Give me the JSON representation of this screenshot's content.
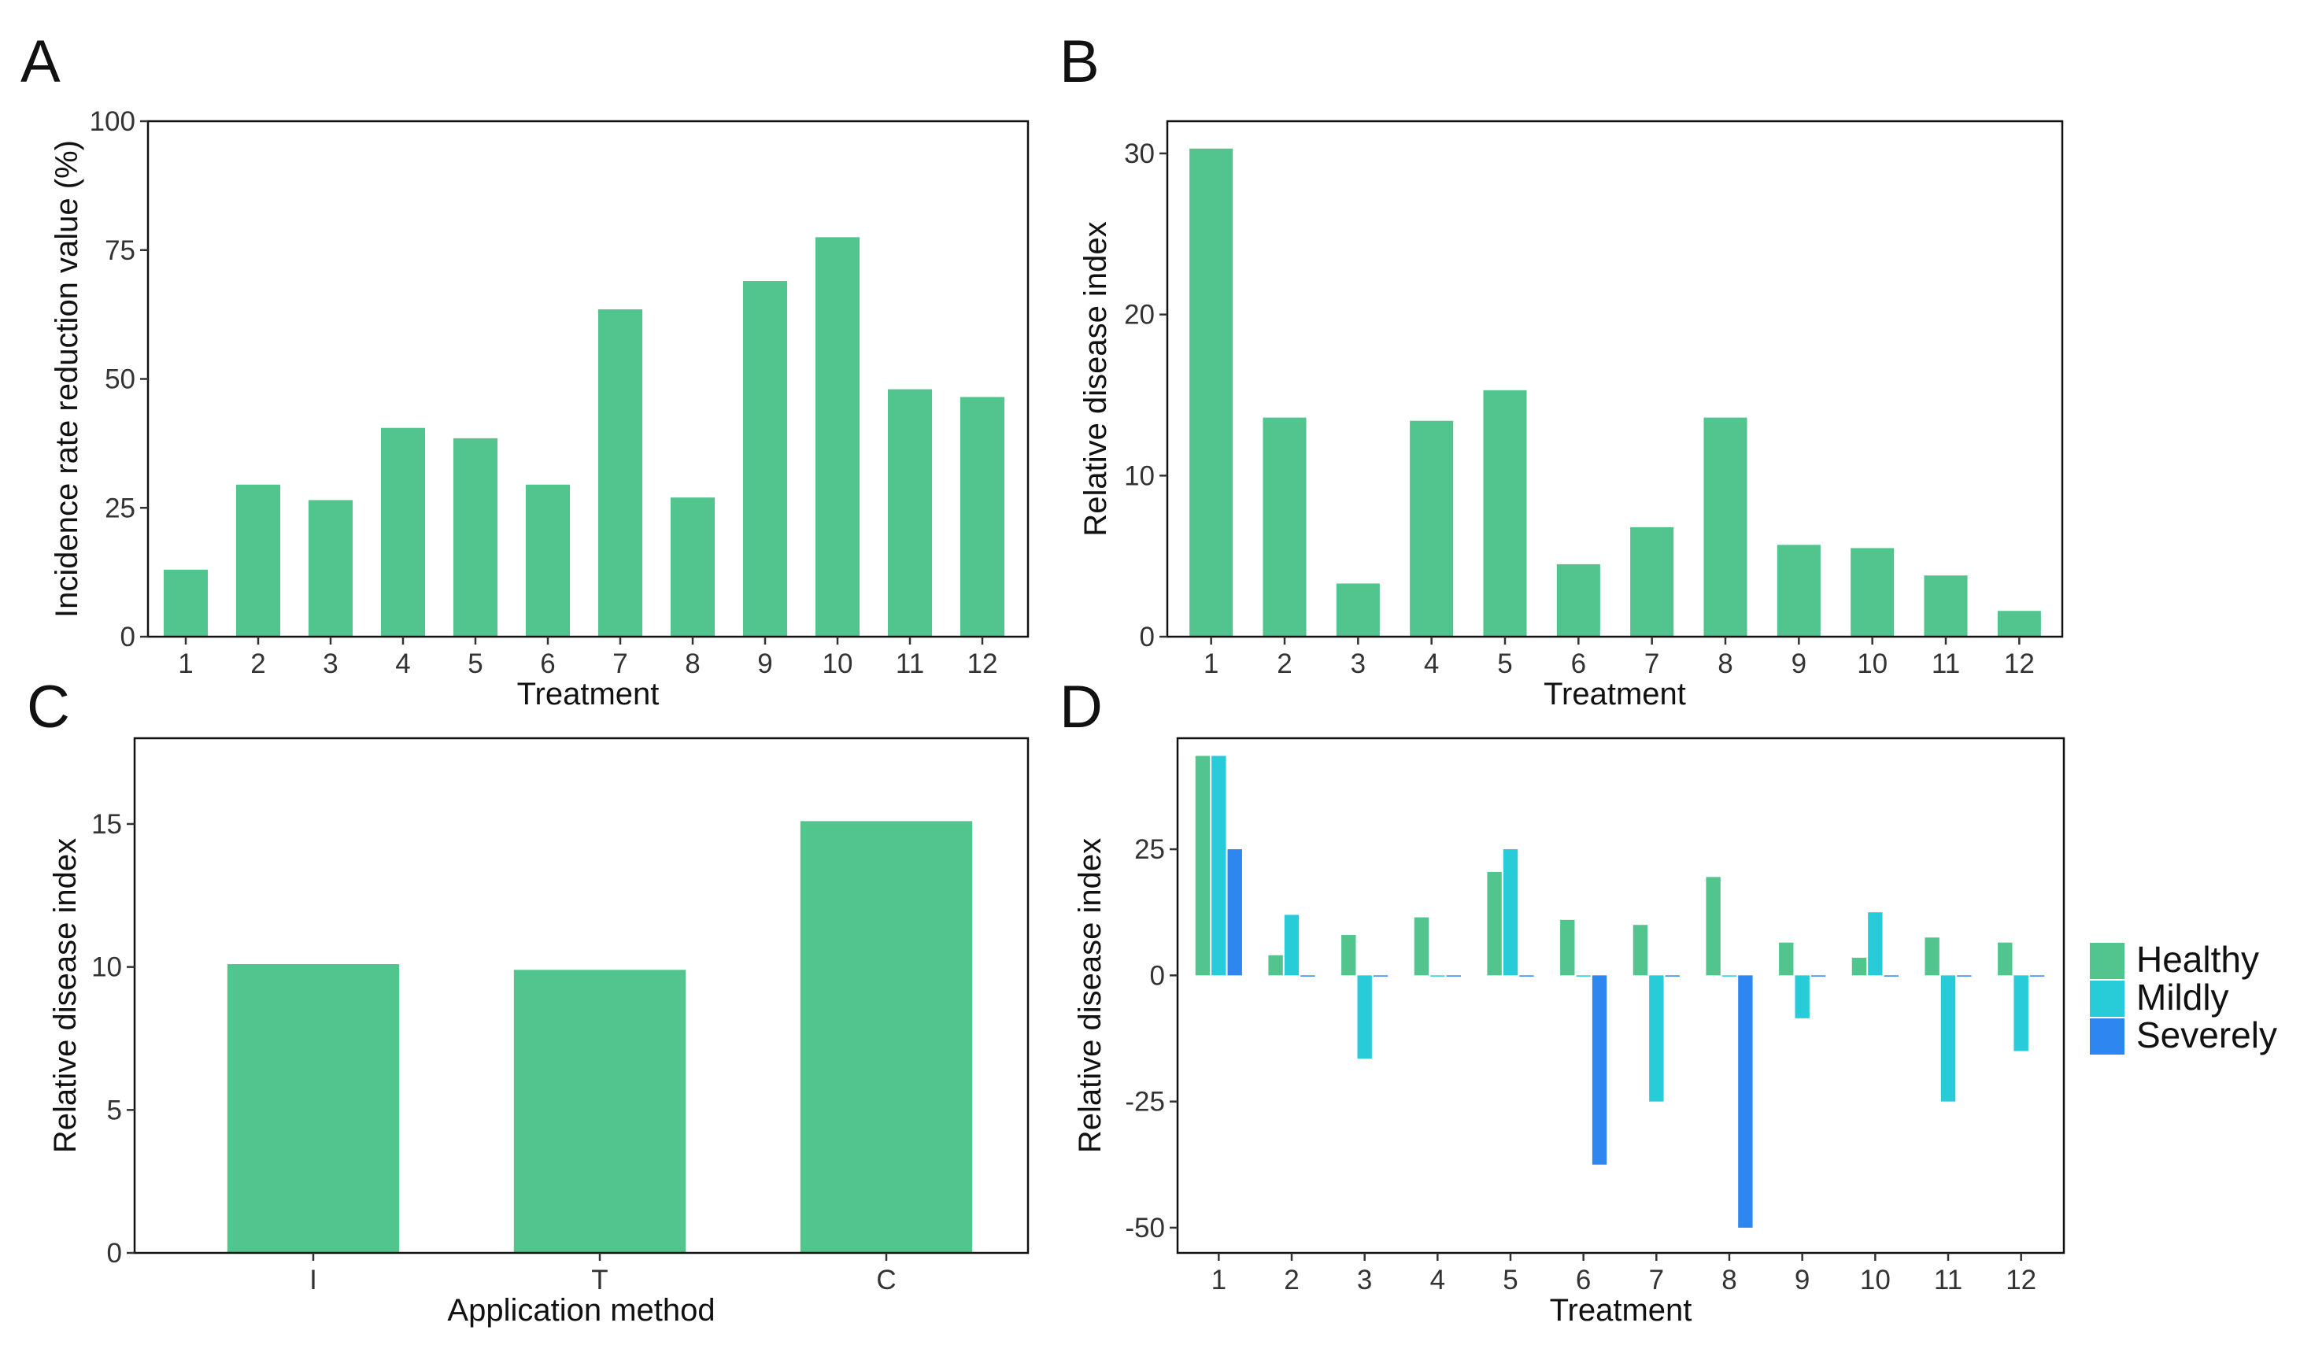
{
  "colors": {
    "healthy": "#52c48e",
    "mildly": "#27ccd8",
    "severely": "#2e86f0",
    "frame": "#111111"
  },
  "chart_data": [
    {
      "panel": "A",
      "type": "bar",
      "categories": [
        "1",
        "2",
        "3",
        "4",
        "5",
        "6",
        "7",
        "8",
        "9",
        "10",
        "11",
        "12"
      ],
      "values": [
        13,
        29.5,
        26.5,
        40.5,
        38.5,
        29.5,
        63.5,
        27,
        69,
        77.5,
        48,
        46.5
      ],
      "xlabel": "Treatment",
      "ylabel": "Incidence rate reduction value (%)",
      "ylim": [
        0,
        100
      ],
      "yticks": [
        0,
        25,
        50,
        75,
        100
      ],
      "grid": false
    },
    {
      "panel": "B",
      "type": "bar",
      "categories": [
        "1",
        "2",
        "3",
        "4",
        "5",
        "6",
        "7",
        "8",
        "9",
        "10",
        "11",
        "12"
      ],
      "values": [
        30.3,
        13.6,
        3.3,
        13.4,
        15.3,
        4.5,
        6.8,
        13.6,
        5.7,
        5.5,
        3.8,
        1.6
      ],
      "xlabel": "Treatment",
      "ylabel": "Relative disease index",
      "ylim": [
        0,
        32
      ],
      "yticks": [
        0,
        10,
        20,
        30
      ],
      "grid": false
    },
    {
      "panel": "C",
      "type": "bar",
      "categories": [
        "I",
        "T",
        "C"
      ],
      "values": [
        10.1,
        9.9,
        15.1
      ],
      "xlabel": "Application method",
      "ylabel": "Relative disease index",
      "ylim": [
        0,
        18
      ],
      "yticks": [
        0,
        5,
        10,
        15
      ],
      "grid": false
    },
    {
      "panel": "D",
      "type": "bar",
      "categories": [
        "1",
        "2",
        "3",
        "4",
        "5",
        "6",
        "7",
        "8",
        "9",
        "10",
        "11",
        "12"
      ],
      "series": [
        {
          "name": "Healthy",
          "values": [
            43.5,
            4,
            8,
            11.5,
            20.5,
            11,
            10,
            19.5,
            6.5,
            3.5,
            7.5,
            6.5
          ]
        },
        {
          "name": "Mildly",
          "values": [
            43.5,
            12,
            -16.5,
            0,
            25,
            0,
            -25,
            0,
            -8.5,
            12.5,
            -25,
            -15
          ]
        },
        {
          "name": "Severely",
          "values": [
            25,
            0,
            0,
            0,
            0,
            -37.5,
            0,
            -50,
            0,
            0,
            0,
            0
          ]
        }
      ],
      "xlabel": "Treatment",
      "ylabel": "Relative disease index",
      "ylim": [
        -55,
        47
      ],
      "yticks": [
        -50,
        -25,
        0,
        25
      ],
      "legend": "right",
      "grid": false
    }
  ]
}
